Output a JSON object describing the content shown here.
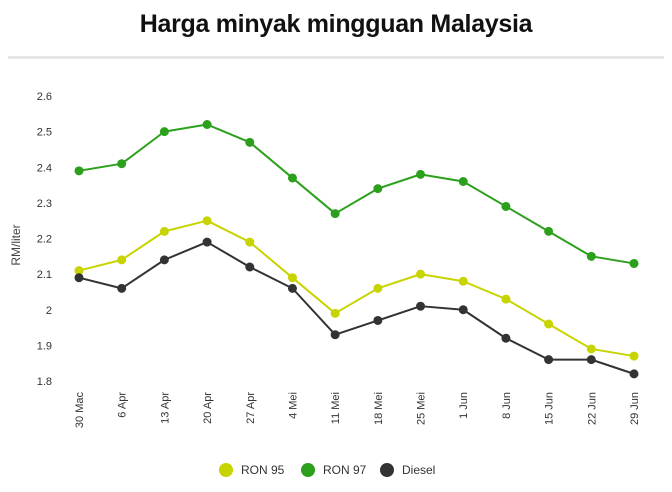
{
  "title": "Harga minyak mingguan Malaysia",
  "chart_data": {
    "type": "line",
    "title": "Harga minyak mingguan Malaysia",
    "xlabel": "",
    "ylabel": "RM/liter",
    "categories": [
      "30 Mac",
      "6 Apr",
      "13 Apr",
      "20 Apr",
      "27 Apr",
      "4 Mei",
      "11 Mei",
      "18 Mei",
      "25 Mei",
      "1 Jun",
      "8 Jun",
      "15 Jun",
      "22 Jun",
      "29 Jun"
    ],
    "yticks": [
      "1.8",
      "1.9",
      "2",
      "2.1",
      "2.2",
      "2.3",
      "2.4",
      "2.5",
      "2.6"
    ],
    "ylim": [
      1.8,
      2.6
    ],
    "grid": false,
    "legend_position": "bottom",
    "series": [
      {
        "name": "RON 95",
        "color": "#c8d400",
        "values": [
          2.11,
          2.14,
          2.22,
          2.25,
          2.19,
          2.09,
          1.99,
          2.06,
          2.1,
          2.08,
          2.03,
          1.96,
          1.89,
          1.87
        ]
      },
      {
        "name": "RON 97",
        "color": "#2ca01c",
        "values": [
          2.39,
          2.41,
          2.5,
          2.52,
          2.47,
          2.37,
          2.27,
          2.34,
          2.38,
          2.36,
          2.29,
          2.22,
          2.15,
          2.13
        ]
      },
      {
        "name": "Diesel",
        "color": "#333333",
        "values": [
          2.09,
          2.06,
          2.14,
          2.19,
          2.12,
          2.06,
          1.93,
          1.97,
          2.01,
          2.0,
          1.92,
          1.86,
          1.86,
          1.82
        ]
      }
    ]
  }
}
